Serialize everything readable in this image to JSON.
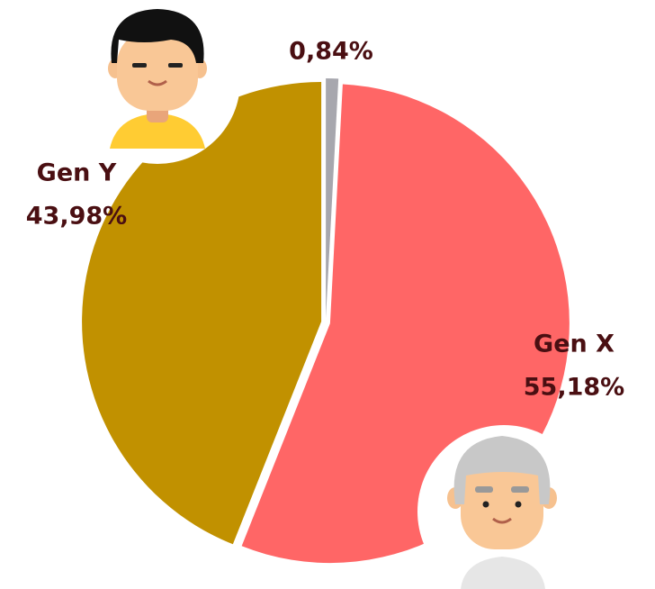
{
  "chart_data": {
    "type": "pie",
    "categories": [
      null,
      "Gen X",
      "Gen Y"
    ],
    "values": [
      0.84,
      55.18,
      43.98
    ],
    "value_labels": [
      "0,84%",
      "55,18%",
      "43,98%"
    ],
    "colors": [
      "#a7a7ae",
      "#ff6666",
      "#c19100"
    ]
  }
}
